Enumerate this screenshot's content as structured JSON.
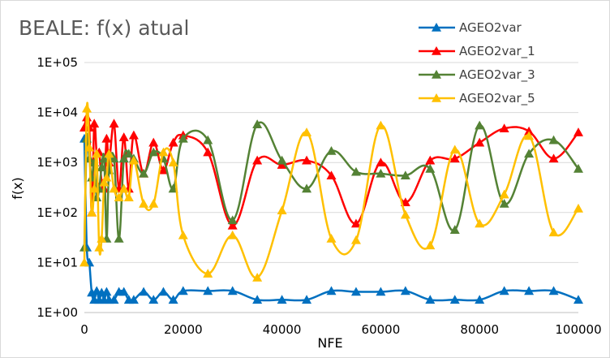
{
  "chart_data": {
    "type": "line",
    "title": "BEALE: f(x) atual",
    "xlabel": "NFE",
    "ylabel": "f(x)",
    "xlim": [
      0,
      100000
    ],
    "ylim": [
      1,
      100000
    ],
    "y_scale": "log",
    "x_ticks": [
      0,
      20000,
      40000,
      60000,
      80000,
      100000
    ],
    "x_tick_labels": [
      "0",
      "20000",
      "40000",
      "60000",
      "80000",
      "100000"
    ],
    "y_ticks": [
      1,
      10,
      100,
      1000,
      10000,
      100000
    ],
    "y_tick_labels": [
      "1E+00",
      "1E+01",
      "1E+02",
      "1E+03",
      "1E+04",
      "1E+05"
    ],
    "grid": "horizontal",
    "legend_position": "top-right",
    "series": [
      {
        "name": "AGEO2var",
        "color": "#0070C0",
        "x": [
          0,
          500,
          1000,
          1500,
          2000,
          2500,
          3000,
          3500,
          4000,
          4500,
          5000,
          6000,
          7000,
          8000,
          9000,
          10000,
          12000,
          14000,
          16000,
          18000,
          20000,
          25000,
          30000,
          35000,
          40000,
          45000,
          50000,
          55000,
          60000,
          65000,
          70000,
          75000,
          80000,
          85000,
          90000,
          95000,
          100000
        ],
        "y": [
          3000,
          20,
          10,
          2.5,
          1.8,
          2.7,
          1.8,
          2.5,
          1.8,
          2.6,
          1.8,
          1.8,
          2.6,
          2.6,
          1.8,
          1.8,
          2.6,
          1.8,
          2.6,
          1.8,
          2.7,
          2.7,
          2.7,
          1.8,
          1.8,
          1.8,
          2.7,
          2.6,
          2.6,
          2.7,
          1.8,
          1.8,
          1.8,
          2.7,
          2.7,
          2.7,
          1.8
        ]
      },
      {
        "name": "AGEO2var_1",
        "color": "#FF0000",
        "x": [
          0,
          500,
          1000,
          1500,
          2000,
          2500,
          3000,
          3500,
          4000,
          4500,
          5000,
          6000,
          7000,
          8000,
          9000,
          10000,
          12000,
          14000,
          16000,
          18000,
          20000,
          25000,
          30000,
          35000,
          40000,
          45000,
          50000,
          55000,
          60000,
          65000,
          70000,
          75000,
          80000,
          85000,
          90000,
          95000,
          100000
        ],
        "y": [
          5000,
          8000,
          5000,
          100,
          6000,
          1500,
          1600,
          400,
          300,
          3000,
          1000,
          6000,
          300,
          3200,
          300,
          3500,
          600,
          2500,
          700,
          2500,
          3500,
          1600,
          55,
          1100,
          900,
          1100,
          550,
          60,
          1000,
          160,
          1100,
          1200,
          2500,
          4800,
          4200,
          1200,
          4000
        ]
      },
      {
        "name": "AGEO2var_3",
        "color": "#548235",
        "x": [
          0,
          500,
          1000,
          1500,
          2000,
          2500,
          3000,
          3500,
          4000,
          4500,
          5000,
          6000,
          7000,
          8000,
          9000,
          10000,
          12000,
          14000,
          16000,
          18000,
          20000,
          25000,
          30000,
          35000,
          40000,
          45000,
          50000,
          55000,
          60000,
          65000,
          70000,
          75000,
          80000,
          85000,
          90000,
          95000,
          100000
        ],
        "y": [
          20,
          3000,
          1200,
          500,
          1000,
          200,
          300,
          800,
          1200,
          30,
          700,
          1200,
          30,
          1200,
          1500,
          1200,
          600,
          1600,
          1200,
          300,
          3000,
          2800,
          70,
          5800,
          1100,
          300,
          1700,
          650,
          600,
          550,
          750,
          45,
          5500,
          150,
          1500,
          2800,
          750
        ]
      },
      {
        "name": "AGEO2var_5",
        "color": "#FFC000",
        "x": [
          0,
          500,
          1000,
          1500,
          2000,
          2500,
          3000,
          3500,
          4000,
          4500,
          5000,
          6000,
          7000,
          8000,
          9000,
          10000,
          12000,
          14000,
          16000,
          18000,
          20000,
          25000,
          30000,
          35000,
          40000,
          45000,
          50000,
          55000,
          60000,
          65000,
          70000,
          75000,
          80000,
          85000,
          90000,
          95000,
          100000
        ],
        "y": [
          10,
          12000,
          2000,
          100,
          300,
          1500,
          20,
          30,
          400,
          500,
          1500,
          300,
          200,
          300,
          200,
          1100,
          150,
          150,
          1600,
          1000,
          35,
          6,
          35,
          5,
          110,
          4000,
          30,
          28,
          5500,
          90,
          22,
          1800,
          60,
          230,
          3400,
          40,
          120
        ]
      }
    ]
  }
}
